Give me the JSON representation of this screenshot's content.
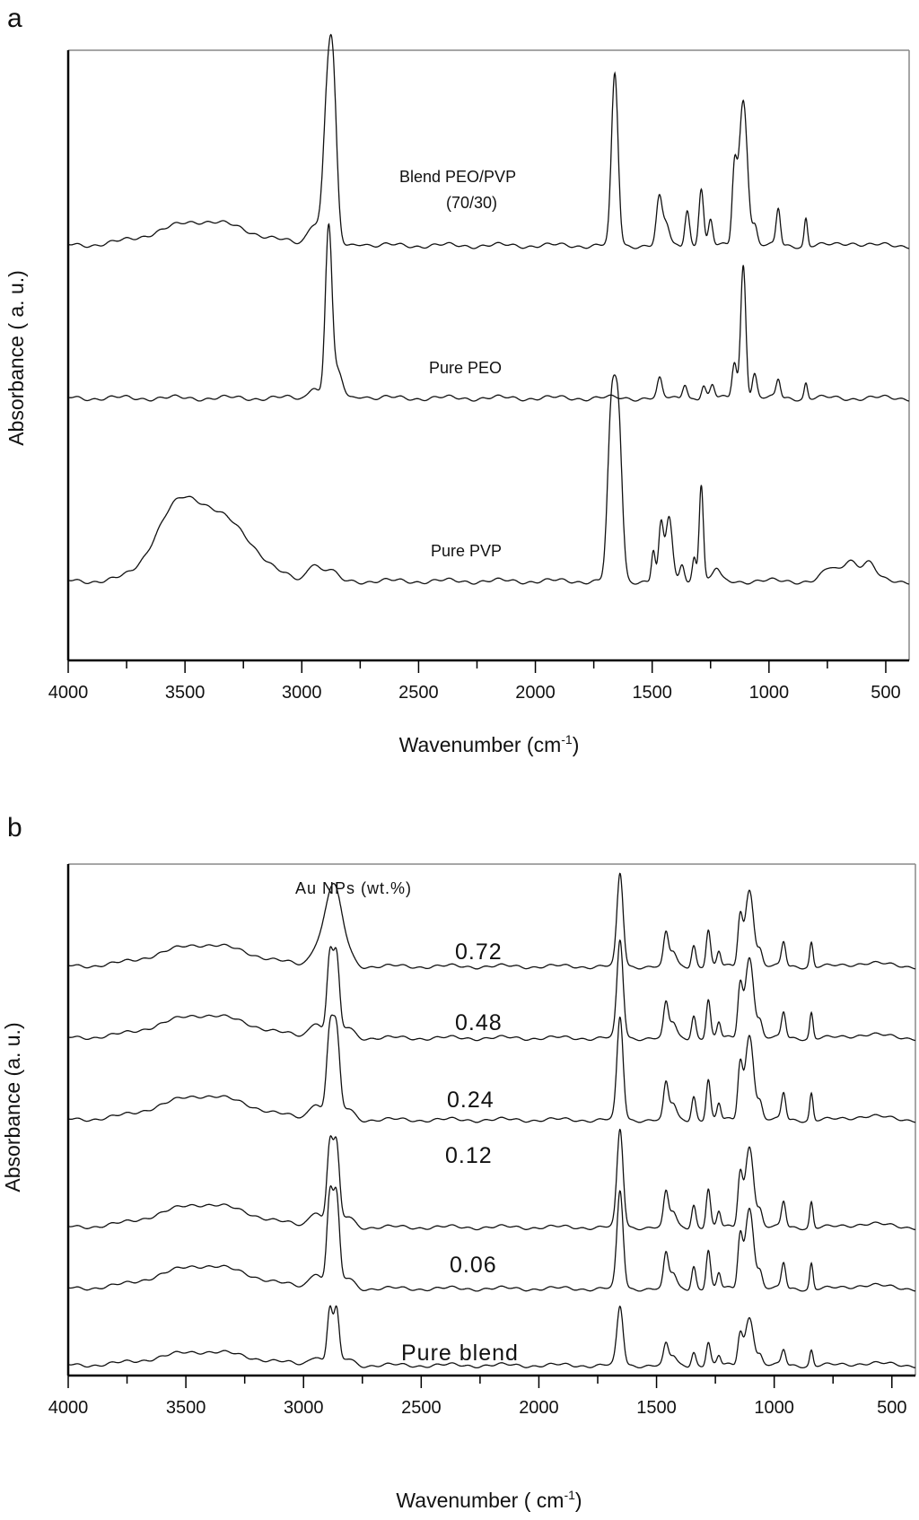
{
  "chart_data": [
    {
      "panel_label": "a",
      "type": "line",
      "xlabel": "Wavenumber (cm",
      "xlabel_sup": "-1",
      "xlabel_end": ")",
      "ylabel": "Absorbance ( a. u.)",
      "xlim": [
        4000,
        400
      ],
      "x_reversed": true,
      "ylim": [
        0,
        10
      ],
      "xticks": [
        4000,
        3500,
        3000,
        2500,
        2000,
        1500,
        1000,
        500
      ],
      "grid": false,
      "annotations": [
        "Blend PEO/PVP",
        "(70/30)",
        "Pure PEO",
        "Pure PVP"
      ],
      "series": [
        {
          "name": "Blend PEO/PVP (70/30)",
          "baseline": 6.8,
          "peaks": [
            [
              3420,
              0.4,
              190
            ],
            [
              2950,
              0.35,
              25
            ],
            [
              2890,
              2.3,
              18
            ],
            [
              2865,
              2.2,
              16
            ],
            [
              2740,
              0.05,
              20
            ],
            [
              1660,
              2.8,
              14
            ],
            [
              1470,
              0.75,
              12
            ],
            [
              1440,
              0.35,
              14
            ],
            [
              1350,
              0.6,
              10
            ],
            [
              1290,
              0.95,
              10
            ],
            [
              1250,
              0.4,
              9
            ],
            [
              1148,
              1.2,
              10
            ],
            [
              1110,
              2.4,
              18
            ],
            [
              1060,
              0.3,
              10
            ],
            [
              960,
              0.6,
              9
            ],
            [
              842,
              0.45,
              7
            ],
            [
              650,
              0.05,
              40
            ]
          ]
        },
        {
          "name": "Pure PEO",
          "baseline": 4.3,
          "peaks": [
            [
              2950,
              0.2,
              20
            ],
            [
              2885,
              2.8,
              14
            ],
            [
              2845,
              0.4,
              20
            ],
            [
              2740,
              0.05,
              20
            ],
            [
              1468,
              0.3,
              10
            ],
            [
              1360,
              0.25,
              10
            ],
            [
              1280,
              0.2,
              9
            ],
            [
              1242,
              0.2,
              9
            ],
            [
              1148,
              0.6,
              10
            ],
            [
              1110,
              2.2,
              11
            ],
            [
              1062,
              0.4,
              10
            ],
            [
              960,
              0.3,
              9
            ],
            [
              842,
              0.25,
              7
            ]
          ]
        },
        {
          "name": "Pure PVP",
          "baseline": 1.3,
          "peaks": [
            [
              3550,
              0.6,
              90
            ],
            [
              3420,
              1.0,
              140
            ],
            [
              3250,
              0.3,
              100
            ],
            [
              2950,
              0.3,
              25
            ],
            [
              2880,
              0.18,
              25
            ],
            [
              1675,
              2.6,
              16
            ],
            [
              1645,
              2.6,
              16
            ],
            [
              1495,
              0.5,
              8
            ],
            [
              1462,
              0.9,
              10
            ],
            [
              1428,
              1.05,
              14
            ],
            [
              1372,
              0.3,
              10
            ],
            [
              1320,
              0.4,
              8
            ],
            [
              1290,
              1.6,
              9
            ],
            [
              1225,
              0.2,
              15
            ],
            [
              740,
              0.2,
              30
            ],
            [
              655,
              0.35,
              30
            ],
            [
              575,
              0.3,
              30
            ]
          ]
        }
      ]
    },
    {
      "panel_label": "b",
      "type": "line",
      "xlabel": "Wavenumber ( cm",
      "xlabel_sup": "-1",
      "xlabel_end": ")",
      "ylabel": "Absorbance (a. u.)",
      "xlim": [
        4000,
        400
      ],
      "x_reversed": true,
      "ylim": [
        0,
        10
      ],
      "xticks": [
        4000,
        3500,
        3000,
        2500,
        2000,
        1500,
        1000,
        500
      ],
      "grid": false,
      "legend_title": "Au NPs (wt.%)",
      "annotations": [
        "0.72",
        "0.48",
        "0.24",
        "0.12",
        "0.06",
        "Pure blend"
      ],
      "series": [
        {
          "name": "0.72",
          "baseline": 8.0,
          "scale": 0.95,
          "c2880": 0.9,
          "w2880": 45
        },
        {
          "name": "0.48",
          "baseline": 6.6,
          "scale": 1.0,
          "c2880": 1.6,
          "w2880": 18
        },
        {
          "name": "0.24",
          "baseline": 5.0,
          "scale": 1.05,
          "c2880": 1.7,
          "w2880": 20
        },
        {
          "name": "0.12",
          "baseline": 2.9,
          "scale": 1.0,
          "c2880": 1.6,
          "w2880": 18
        },
        {
          "name": "0.06",
          "baseline": 1.7,
          "scale": 1.0,
          "c2880": 1.8,
          "w2880": 18
        },
        {
          "name": "Pure blend",
          "baseline": 0.2,
          "scale": 0.6,
          "c2880": 1.1,
          "w2880": 16
        }
      ],
      "blend_peaks": [
        [
          3420,
          0.45,
          190
        ],
        [
          2950,
          0.3,
          25
        ],
        [
          1655,
          1.9,
          13
        ],
        [
          1460,
          0.65,
          10
        ],
        [
          1430,
          0.3,
          14
        ],
        [
          1342,
          0.45,
          9
        ],
        [
          1280,
          0.75,
          9
        ],
        [
          1235,
          0.3,
          8
        ],
        [
          1145,
          1.0,
          10
        ],
        [
          1105,
          1.6,
          18
        ],
        [
          1060,
          0.3,
          10
        ],
        [
          960,
          0.5,
          9
        ],
        [
          842,
          0.5,
          7
        ],
        [
          600,
          0.08,
          60
        ]
      ]
    }
  ]
}
